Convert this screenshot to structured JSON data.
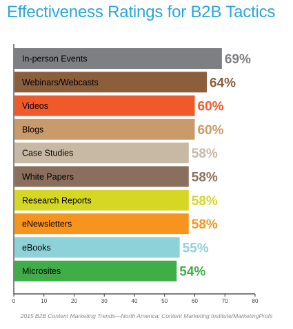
{
  "chart_data": {
    "type": "bar",
    "orientation": "horizontal",
    "title": "Effectiveness Ratings for B2B Tactics",
    "categories": [
      "In-person Events",
      "Webinars/Webcasts",
      "Videos",
      "Blogs",
      "Case Studies",
      "White Papers",
      "Research Reports",
      "eNewsletters",
      "eBooks",
      "Microsites"
    ],
    "values": [
      69,
      64,
      60,
      60,
      58,
      58,
      58,
      58,
      55,
      54
    ],
    "value_labels": [
      "69%",
      "64%",
      "60%",
      "60%",
      "58%",
      "58%",
      "58%",
      "58%",
      "55%",
      "54%"
    ],
    "colors": [
      "#7e7f82",
      "#8b5e3c",
      "#f0592a",
      "#c99a6b",
      "#c7b9a3",
      "#8a6f5c",
      "#d6d624",
      "#f7941d",
      "#8ed2d9",
      "#3fae49"
    ],
    "xticks": [
      "0",
      "10",
      "20",
      "30",
      "40",
      "50",
      "60",
      "70",
      "80"
    ],
    "xlim": [
      0,
      80
    ],
    "xlabel": "",
    "ylabel": "",
    "grid": false,
    "legend": "none"
  },
  "source": "2015 B2B Content Marketing Trends—North America: Content Marketing Institute/MarketingProfs"
}
